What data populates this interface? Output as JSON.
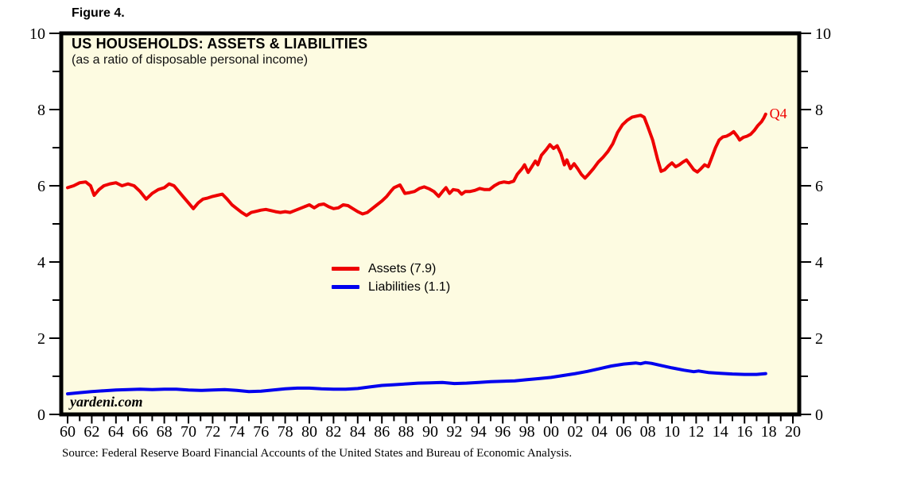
{
  "figure_label": "Figure 4.",
  "chart": {
    "title": "US HOUSEHOLDS: ASSETS & LIABILITIES",
    "subtitle": "(as a ratio of disposable personal income)",
    "watermark": "yardeni.com",
    "end_label": "Q4",
    "legend": [
      {
        "label": "Assets (7.9)",
        "color": "#ee0000"
      },
      {
        "label": "Liabilities (1.1)",
        "color": "#0000ee"
      }
    ],
    "colors": {
      "plot_bg": "#fdfbe1",
      "axis": "#000000"
    }
  },
  "source_note": "Source: Federal Reserve Board Financial Accounts of the United States and Bureau of Economic Analysis.",
  "chart_data": {
    "type": "line",
    "title": "US HOUSEHOLDS: ASSETS & LIABILITIES",
    "subtitle": "(as a ratio of disposable personal income)",
    "ylabel": "ratio of disposable personal income",
    "ylim": [
      0,
      10
    ],
    "y_ticks": [
      0,
      2,
      4,
      6,
      8,
      10
    ],
    "y_minor_ticks": [
      1,
      3,
      5,
      7,
      9
    ],
    "x_start_year": 1960,
    "x_end_year": 2020,
    "x_tick_step": 2,
    "x_tick_labels": [
      "60",
      "62",
      "64",
      "66",
      "68",
      "70",
      "72",
      "74",
      "76",
      "78",
      "80",
      "82",
      "84",
      "86",
      "88",
      "90",
      "92",
      "94",
      "96",
      "98",
      "00",
      "02",
      "04",
      "06",
      "08",
      "10",
      "12",
      "14",
      "16",
      "18",
      "20"
    ],
    "grid": false,
    "legend_position": "center",
    "annotation": {
      "text": "Q4",
      "year": 2018.0,
      "value": 7.9
    },
    "series": [
      {
        "name": "Assets (7.9)",
        "color": "#ee0000",
        "last_value": 7.9,
        "points": [
          [
            1960.0,
            5.95
          ],
          [
            1960.5,
            6.0
          ],
          [
            1961.0,
            6.08
          ],
          [
            1961.5,
            6.1
          ],
          [
            1961.9,
            6.0
          ],
          [
            1962.2,
            5.75
          ],
          [
            1962.6,
            5.9
          ],
          [
            1963.0,
            6.0
          ],
          [
            1963.5,
            6.05
          ],
          [
            1964.0,
            6.08
          ],
          [
            1964.5,
            6.0
          ],
          [
            1965.0,
            6.05
          ],
          [
            1965.5,
            6.0
          ],
          [
            1966.0,
            5.85
          ],
          [
            1966.5,
            5.65
          ],
          [
            1967.0,
            5.8
          ],
          [
            1967.5,
            5.9
          ],
          [
            1968.0,
            5.95
          ],
          [
            1968.4,
            6.05
          ],
          [
            1968.8,
            6.0
          ],
          [
            1969.2,
            5.85
          ],
          [
            1969.6,
            5.7
          ],
          [
            1970.0,
            5.55
          ],
          [
            1970.4,
            5.4
          ],
          [
            1970.8,
            5.55
          ],
          [
            1971.2,
            5.65
          ],
          [
            1971.6,
            5.68
          ],
          [
            1972.0,
            5.72
          ],
          [
            1972.4,
            5.75
          ],
          [
            1972.8,
            5.78
          ],
          [
            1973.2,
            5.65
          ],
          [
            1973.6,
            5.5
          ],
          [
            1974.0,
            5.4
          ],
          [
            1974.4,
            5.3
          ],
          [
            1974.8,
            5.22
          ],
          [
            1975.2,
            5.3
          ],
          [
            1975.6,
            5.33
          ],
          [
            1976.0,
            5.36
          ],
          [
            1976.4,
            5.38
          ],
          [
            1976.8,
            5.35
          ],
          [
            1977.2,
            5.32
          ],
          [
            1977.6,
            5.3
          ],
          [
            1978.0,
            5.32
          ],
          [
            1978.4,
            5.3
          ],
          [
            1978.8,
            5.35
          ],
          [
            1979.2,
            5.4
          ],
          [
            1979.6,
            5.45
          ],
          [
            1980.0,
            5.5
          ],
          [
            1980.4,
            5.42
          ],
          [
            1980.8,
            5.5
          ],
          [
            1981.2,
            5.52
          ],
          [
            1981.6,
            5.45
          ],
          [
            1982.0,
            5.4
          ],
          [
            1982.4,
            5.42
          ],
          [
            1982.8,
            5.5
          ],
          [
            1983.2,
            5.48
          ],
          [
            1983.6,
            5.4
          ],
          [
            1984.0,
            5.32
          ],
          [
            1984.4,
            5.26
          ],
          [
            1984.8,
            5.3
          ],
          [
            1985.2,
            5.4
          ],
          [
            1985.6,
            5.5
          ],
          [
            1986.0,
            5.6
          ],
          [
            1986.4,
            5.72
          ],
          [
            1986.8,
            5.88
          ],
          [
            1987.0,
            5.95
          ],
          [
            1987.5,
            6.02
          ],
          [
            1987.9,
            5.8
          ],
          [
            1988.3,
            5.82
          ],
          [
            1988.7,
            5.85
          ],
          [
            1989.1,
            5.93
          ],
          [
            1989.5,
            5.97
          ],
          [
            1989.9,
            5.92
          ],
          [
            1990.3,
            5.85
          ],
          [
            1990.7,
            5.72
          ],
          [
            1991.1,
            5.88
          ],
          [
            1991.3,
            5.95
          ],
          [
            1991.6,
            5.8
          ],
          [
            1991.9,
            5.9
          ],
          [
            1992.3,
            5.88
          ],
          [
            1992.6,
            5.78
          ],
          [
            1992.9,
            5.85
          ],
          [
            1993.3,
            5.85
          ],
          [
            1993.7,
            5.88
          ],
          [
            1994.1,
            5.93
          ],
          [
            1994.5,
            5.9
          ],
          [
            1994.9,
            5.9
          ],
          [
            1995.3,
            6.0
          ],
          [
            1995.7,
            6.07
          ],
          [
            1996.1,
            6.1
          ],
          [
            1996.5,
            6.08
          ],
          [
            1996.9,
            6.12
          ],
          [
            1997.2,
            6.3
          ],
          [
            1997.6,
            6.45
          ],
          [
            1997.8,
            6.55
          ],
          [
            1998.1,
            6.35
          ],
          [
            1998.4,
            6.5
          ],
          [
            1998.7,
            6.65
          ],
          [
            1998.9,
            6.55
          ],
          [
            1999.2,
            6.8
          ],
          [
            1999.6,
            6.95
          ],
          [
            1999.9,
            7.08
          ],
          [
            2000.2,
            6.98
          ],
          [
            2000.5,
            7.05
          ],
          [
            2000.8,
            6.85
          ],
          [
            2001.1,
            6.55
          ],
          [
            2001.3,
            6.68
          ],
          [
            2001.6,
            6.45
          ],
          [
            2001.9,
            6.58
          ],
          [
            2002.2,
            6.45
          ],
          [
            2002.5,
            6.3
          ],
          [
            2002.8,
            6.2
          ],
          [
            2003.1,
            6.3
          ],
          [
            2003.5,
            6.45
          ],
          [
            2003.9,
            6.62
          ],
          [
            2004.3,
            6.75
          ],
          [
            2004.7,
            6.9
          ],
          [
            2005.1,
            7.1
          ],
          [
            2005.5,
            7.4
          ],
          [
            2005.9,
            7.6
          ],
          [
            2006.3,
            7.72
          ],
          [
            2006.7,
            7.8
          ],
          [
            2007.1,
            7.83
          ],
          [
            2007.4,
            7.85
          ],
          [
            2007.7,
            7.8
          ],
          [
            2008.0,
            7.55
          ],
          [
            2008.4,
            7.2
          ],
          [
            2008.8,
            6.7
          ],
          [
            2009.1,
            6.38
          ],
          [
            2009.4,
            6.42
          ],
          [
            2009.7,
            6.52
          ],
          [
            2010.0,
            6.6
          ],
          [
            2010.3,
            6.5
          ],
          [
            2010.6,
            6.55
          ],
          [
            2010.9,
            6.62
          ],
          [
            2011.2,
            6.68
          ],
          [
            2011.5,
            6.55
          ],
          [
            2011.8,
            6.42
          ],
          [
            2012.1,
            6.36
          ],
          [
            2012.4,
            6.45
          ],
          [
            2012.7,
            6.55
          ],
          [
            2013.0,
            6.5
          ],
          [
            2013.3,
            6.75
          ],
          [
            2013.6,
            7.0
          ],
          [
            2013.9,
            7.2
          ],
          [
            2014.2,
            7.28
          ],
          [
            2014.5,
            7.3
          ],
          [
            2014.8,
            7.35
          ],
          [
            2015.1,
            7.42
          ],
          [
            2015.4,
            7.3
          ],
          [
            2015.6,
            7.2
          ],
          [
            2015.9,
            7.27
          ],
          [
            2016.2,
            7.3
          ],
          [
            2016.5,
            7.35
          ],
          [
            2016.8,
            7.45
          ],
          [
            2017.1,
            7.58
          ],
          [
            2017.4,
            7.68
          ],
          [
            2017.6,
            7.78
          ],
          [
            2017.75,
            7.88
          ]
        ]
      },
      {
        "name": "Liabilities (1.1)",
        "color": "#0000ee",
        "last_value": 1.1,
        "points": [
          [
            1960.0,
            0.54
          ],
          [
            1961.0,
            0.57
          ],
          [
            1962.0,
            0.6
          ],
          [
            1963.0,
            0.62
          ],
          [
            1964.0,
            0.64
          ],
          [
            1965.0,
            0.65
          ],
          [
            1966.0,
            0.66
          ],
          [
            1967.0,
            0.65
          ],
          [
            1968.0,
            0.66
          ],
          [
            1969.0,
            0.66
          ],
          [
            1970.0,
            0.64
          ],
          [
            1971.0,
            0.63
          ],
          [
            1972.0,
            0.64
          ],
          [
            1973.0,
            0.65
          ],
          [
            1974.0,
            0.63
          ],
          [
            1975.0,
            0.6
          ],
          [
            1976.0,
            0.61
          ],
          [
            1977.0,
            0.64
          ],
          [
            1978.0,
            0.67
          ],
          [
            1979.0,
            0.69
          ],
          [
            1980.0,
            0.69
          ],
          [
            1981.0,
            0.67
          ],
          [
            1982.0,
            0.66
          ],
          [
            1983.0,
            0.66
          ],
          [
            1984.0,
            0.68
          ],
          [
            1985.0,
            0.72
          ],
          [
            1986.0,
            0.76
          ],
          [
            1987.0,
            0.78
          ],
          [
            1988.0,
            0.8
          ],
          [
            1989.0,
            0.82
          ],
          [
            1990.0,
            0.83
          ],
          [
            1991.0,
            0.84
          ],
          [
            1992.0,
            0.81
          ],
          [
            1993.0,
            0.82
          ],
          [
            1994.0,
            0.84
          ],
          [
            1995.0,
            0.86
          ],
          [
            1996.0,
            0.87
          ],
          [
            1997.0,
            0.88
          ],
          [
            1998.0,
            0.91
          ],
          [
            1999.0,
            0.94
          ],
          [
            2000.0,
            0.97
          ],
          [
            2001.0,
            1.02
          ],
          [
            2002.0,
            1.07
          ],
          [
            2003.0,
            1.13
          ],
          [
            2004.0,
            1.2
          ],
          [
            2005.0,
            1.27
          ],
          [
            2006.0,
            1.32
          ],
          [
            2007.0,
            1.35
          ],
          [
            2007.4,
            1.33
          ],
          [
            2007.8,
            1.36
          ],
          [
            2008.3,
            1.34
          ],
          [
            2009.0,
            1.29
          ],
          [
            2010.0,
            1.22
          ],
          [
            2011.0,
            1.16
          ],
          [
            2011.8,
            1.12
          ],
          [
            2012.2,
            1.14
          ],
          [
            2013.0,
            1.1
          ],
          [
            2014.0,
            1.08
          ],
          [
            2015.0,
            1.06
          ],
          [
            2016.0,
            1.05
          ],
          [
            2017.0,
            1.05
          ],
          [
            2017.75,
            1.07
          ]
        ]
      }
    ]
  }
}
